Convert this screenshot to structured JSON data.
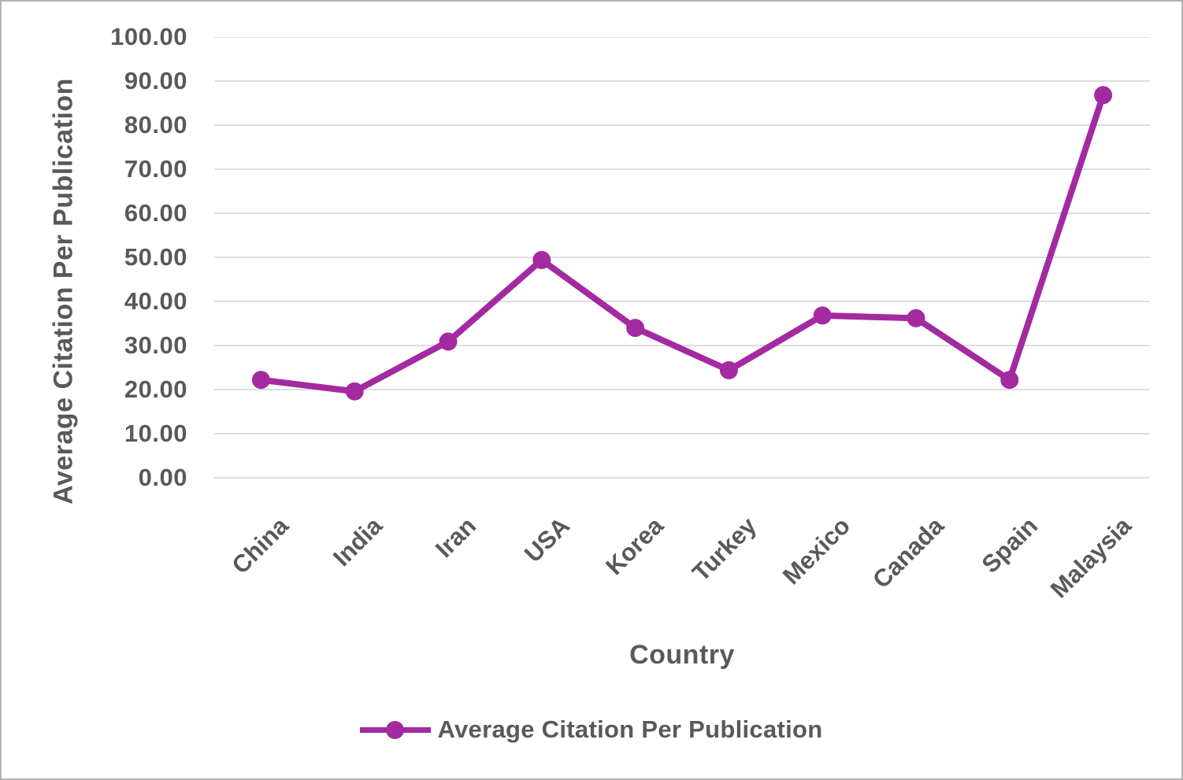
{
  "chart_data": {
    "type": "line",
    "title": "",
    "xlabel": "Country",
    "ylabel": "Average Citation Per Publication",
    "categories": [
      "China",
      "India",
      "Iran",
      "USA",
      "Korea",
      "Turkey",
      "Mexico",
      "Canada",
      "Spain",
      "Malaysia"
    ],
    "series": [
      {
        "name": "Average Citation Per Publication",
        "values": [
          22.2,
          19.6,
          30.9,
          49.4,
          34.0,
          24.4,
          36.8,
          36.2,
          22.2,
          86.8
        ],
        "color": "#A32AA0",
        "marker": "circle"
      }
    ],
    "ylim": [
      0,
      100
    ],
    "ytick_step": 10,
    "ytick_labels": [
      "0.00",
      "10.00",
      "20.00",
      "30.00",
      "40.00",
      "50.00",
      "60.00",
      "70.00",
      "80.00",
      "90.00",
      "100.00"
    ],
    "grid": "horizontal",
    "legend": {
      "position": "bottom",
      "entries": [
        "Average Citation Per Publication"
      ]
    }
  },
  "colors": {
    "series": "#A32AA0",
    "text": "#595959",
    "gridline": "#D9D9D9",
    "background": "#FFFFFF",
    "frame_border": "#B3B3B3"
  }
}
